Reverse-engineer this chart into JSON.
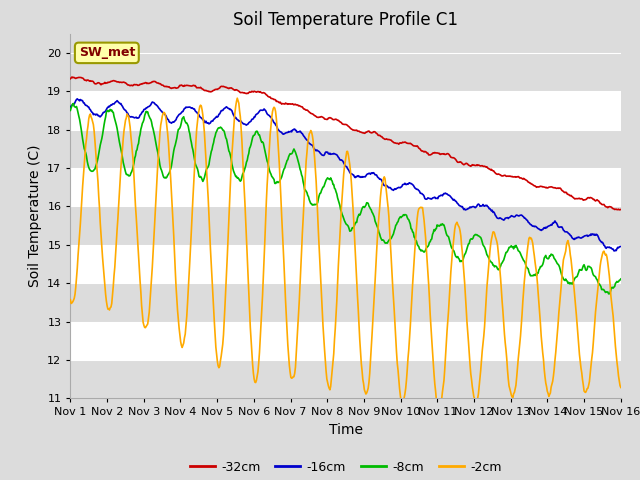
{
  "title": "Soil Temperature Profile C1",
  "xlabel": "Time",
  "ylabel": "Soil Temperature (C)",
  "ylim": [
    11.0,
    20.5
  ],
  "yticks": [
    11.0,
    12.0,
    13.0,
    14.0,
    15.0,
    16.0,
    17.0,
    18.0,
    19.0,
    20.0
  ],
  "xlim": [
    0,
    15
  ],
  "xtick_labels": [
    "Nov 1",
    "Nov 2",
    "Nov 3",
    "Nov 4",
    "Nov 5",
    "Nov 6",
    "Nov 7",
    "Nov 8",
    "Nov 9",
    "Nov 10",
    "Nov 11",
    "Nov 12",
    "Nov 13",
    "Nov 14",
    "Nov 15",
    "Nov 16"
  ],
  "series": {
    "-32cm": {
      "color": "#cc0000",
      "linewidth": 1.2
    },
    "-16cm": {
      "color": "#0000cc",
      "linewidth": 1.2
    },
    "-8cm": {
      "color": "#00bb00",
      "linewidth": 1.2
    },
    "-2cm": {
      "color": "#ffaa00",
      "linewidth": 1.2
    }
  },
  "legend_label": "SW_met",
  "background_color": "#dcdcdc",
  "grid_color": "#ffffff",
  "title_fontsize": 12,
  "axis_label_fontsize": 10,
  "tick_fontsize": 8
}
